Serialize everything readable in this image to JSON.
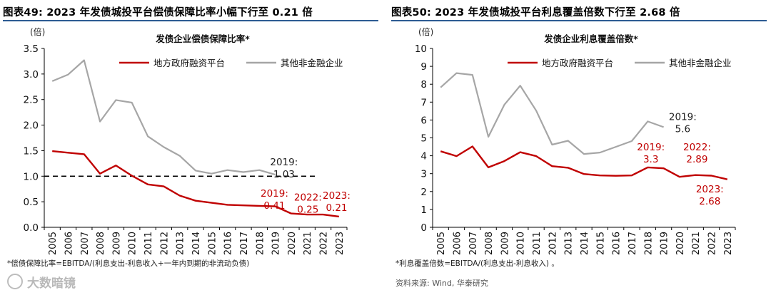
{
  "charts": [
    {
      "fig_title": "图表49:  2023 年发债城投平台偿债保障比率小幅下行至 0.21 倍",
      "footnote": "*偿债保障比率=EBITDA/(利息支出-利息收入+一年内到期的非流动负债)",
      "source": "",
      "watermark": "大数暗镜"
    },
    {
      "fig_title": "图表50:  2023 年发债城投平台利息覆盖倍数下行至 2.68 倍",
      "footnote": "*利息覆盖倍数=EBITDA/(利息支出-利息收入) 。",
      "source": "资料来源: Wind, 华泰研究",
      "watermark": ""
    }
  ],
  "chart_data": [
    {
      "type": "line",
      "title": "发债企业偿债保障比率*",
      "unit_label": "(倍)",
      "x": [
        "2005",
        "2006",
        "2007",
        "2008",
        "2009",
        "2010",
        "2011",
        "2012",
        "2013",
        "2014",
        "2015",
        "2016",
        "2017",
        "2018",
        "2019",
        "2020",
        "2021",
        "2022",
        "2023"
      ],
      "ylim": [
        0,
        3.5
      ],
      "yticks": [
        "0.0",
        "0.5",
        "1.0",
        "1.5",
        "2.0",
        "2.5",
        "3.0",
        "3.5"
      ],
      "ytick_values": [
        0,
        0.5,
        1.0,
        1.5,
        2.0,
        2.5,
        3.0,
        3.5
      ],
      "reference_line": 1.0,
      "legend_position": "top-right",
      "series": [
        {
          "name": "地方政府融资平台",
          "color": "#c00000",
          "values": [
            1.49,
            1.46,
            1.43,
            1.05,
            1.21,
            1.01,
            0.84,
            0.8,
            0.62,
            0.52,
            0.48,
            0.44,
            0.43,
            0.42,
            0.41,
            0.27,
            0.25,
            0.25,
            0.21
          ]
        },
        {
          "name": "其他非金融企业",
          "color": "#a6a6a6",
          "values": [
            2.86,
            2.99,
            3.27,
            2.07,
            2.49,
            2.44,
            1.78,
            1.57,
            1.4,
            1.11,
            1.05,
            1.12,
            1.08,
            1.12,
            1.03,
            null,
            null,
            null,
            null
          ]
        }
      ],
      "annotations": [
        {
          "lines": [
            "2019:",
            "1.03"
          ],
          "color": "#222222",
          "x_index": 14.55,
          "y": 1.21
        },
        {
          "lines": [
            "2019:",
            "0.41"
          ],
          "color": "#c00000",
          "x_index": 13.95,
          "y": 0.6
        },
        {
          "lines": [
            "2022:",
            "0.25"
          ],
          "color": "#c00000",
          "x_index": 16.05,
          "y": 0.52
        },
        {
          "lines": [
            "2023:",
            "0.21"
          ],
          "color": "#c00000",
          "x_index": 17.85,
          "y": 0.56
        }
      ]
    },
    {
      "type": "line",
      "title": "发债企业利息覆盖倍数*",
      "unit_label": "(倍)",
      "x": [
        "2005",
        "2006",
        "2007",
        "2008",
        "2009",
        "2010",
        "2011",
        "2012",
        "2013",
        "2014",
        "2015",
        "2016",
        "2017",
        "2018",
        "2019",
        "2020",
        "2021",
        "2022",
        "2023"
      ],
      "ylim": [
        0,
        10
      ],
      "yticks": [
        "0",
        "1",
        "2",
        "3",
        "4",
        "5",
        "6",
        "7",
        "8",
        "9",
        "10"
      ],
      "ytick_values": [
        0,
        1,
        2,
        3,
        4,
        5,
        6,
        7,
        8,
        9,
        10
      ],
      "reference_line": null,
      "legend_position": "top-right",
      "series": [
        {
          "name": "地方政府融资平台",
          "color": "#c00000",
          "values": [
            4.25,
            3.98,
            4.52,
            3.35,
            3.7,
            4.2,
            3.98,
            3.42,
            3.33,
            2.98,
            2.9,
            2.88,
            2.9,
            3.35,
            3.3,
            2.82,
            2.92,
            2.89,
            2.68
          ]
        },
        {
          "name": "其他非金融企业",
          "color": "#a6a6a6",
          "values": [
            7.82,
            8.62,
            8.52,
            5.06,
            6.85,
            7.92,
            6.52,
            4.62,
            4.84,
            4.1,
            4.18,
            4.5,
            4.82,
            5.92,
            5.6,
            null,
            null,
            null,
            null
          ]
        }
      ],
      "annotations": [
        {
          "lines": [
            "2019:",
            "5.6"
          ],
          "color": "#222222",
          "x_index": 15.2,
          "y": 6.0
        },
        {
          "lines": [
            "2019:",
            "3.3"
          ],
          "color": "#c00000",
          "x_index": 13.2,
          "y": 4.3
        },
        {
          "lines": [
            "2022:",
            "2.89"
          ],
          "color": "#c00000",
          "x_index": 16.1,
          "y": 4.3
        },
        {
          "lines": [
            "2023:",
            "2.68"
          ],
          "color": "#c00000",
          "x_index": 16.9,
          "y": 1.95
        }
      ]
    }
  ]
}
